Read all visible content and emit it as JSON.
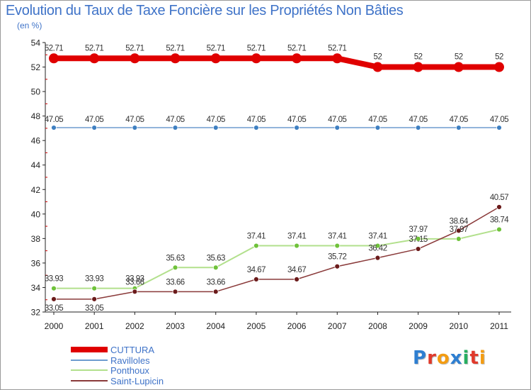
{
  "title": "Evolution du Taux de Taxe Foncière sur les Propriétés Non Bâties",
  "unit": "(en %)",
  "logo": {
    "text": "Proxiti",
    "letters": [
      {
        "ch": "P",
        "color": "#2e7fd1"
      },
      {
        "ch": "r",
        "color": "#e0392b"
      },
      {
        "ch": "o",
        "color": "#f39c12"
      },
      {
        "ch": "x",
        "color": "#2e7fd1"
      },
      {
        "ch": "i",
        "color": "#27ae60"
      },
      {
        "ch": "t",
        "color": "#e0392b"
      },
      {
        "ch": "i",
        "color": "#f39c12"
      }
    ]
  },
  "chart_data": {
    "type": "line",
    "title": "Evolution du Taux de Taxe Foncière sur les Propriétés Non Bâties",
    "ylabel": "(en %)",
    "xlabel": "",
    "ylim": [
      32,
      54
    ],
    "yticks": [
      32,
      34,
      36,
      38,
      40,
      42,
      44,
      46,
      48,
      50,
      52,
      54
    ],
    "categories": [
      "2000",
      "2001",
      "2002",
      "2003",
      "2004",
      "2005",
      "2006",
      "2007",
      "2008",
      "2009",
      "2010",
      "2011"
    ],
    "series": [
      {
        "name": "CUTTURA",
        "color": "#e00000",
        "marker": "#e00000",
        "values": [
          52.71,
          52.71,
          52.71,
          52.71,
          52.71,
          52.71,
          52.71,
          52.71,
          52,
          52,
          52,
          52
        ],
        "labels": [
          "52.71",
          "52.71",
          "52.71",
          "52.71",
          "52.71",
          "52.71",
          "52.71",
          "52.71",
          "52",
          "52",
          "52",
          "52"
        ]
      },
      {
        "name": "Ravilloles",
        "color": "#6e9ccf",
        "marker": "#3e7fc1",
        "values": [
          47.05,
          47.05,
          47.05,
          47.05,
          47.05,
          47.05,
          47.05,
          47.05,
          47.05,
          47.05,
          47.05,
          47.05
        ],
        "labels": [
          "47.05",
          "47.05",
          "47.05",
          "47.05",
          "47.05",
          "47.05",
          "47.05",
          "47.05",
          "47.05",
          "47.05",
          "47.05",
          "47.05"
        ]
      },
      {
        "name": "Ponthoux",
        "color": "#b2e08c",
        "marker": "#6fc23a",
        "values": [
          33.93,
          33.93,
          33.93,
          35.63,
          35.63,
          37.41,
          37.41,
          37.41,
          37.41,
          37.97,
          37.97,
          38.74
        ],
        "labels": [
          "33.93",
          "33.93",
          "33.93",
          "35.63",
          "35.63",
          "37.41",
          "37.41",
          "37.41",
          "37.41",
          "37.97",
          "37.97",
          "38.74"
        ]
      },
      {
        "name": "Saint-Lupicin",
        "color": "#8a3a3a",
        "marker": "#6b1b1b",
        "values": [
          33.05,
          33.05,
          33.66,
          33.66,
          33.66,
          34.67,
          34.67,
          35.72,
          36.42,
          37.15,
          38.64,
          40.57
        ],
        "labels": [
          "33.05",
          "33.05",
          "33.66",
          "33.66",
          "33.66",
          "34.67",
          "34.67",
          "35.72",
          "36.42",
          "37.15",
          "38.64",
          "40.57"
        ]
      }
    ],
    "legend": "bottom-left",
    "grid": false
  }
}
